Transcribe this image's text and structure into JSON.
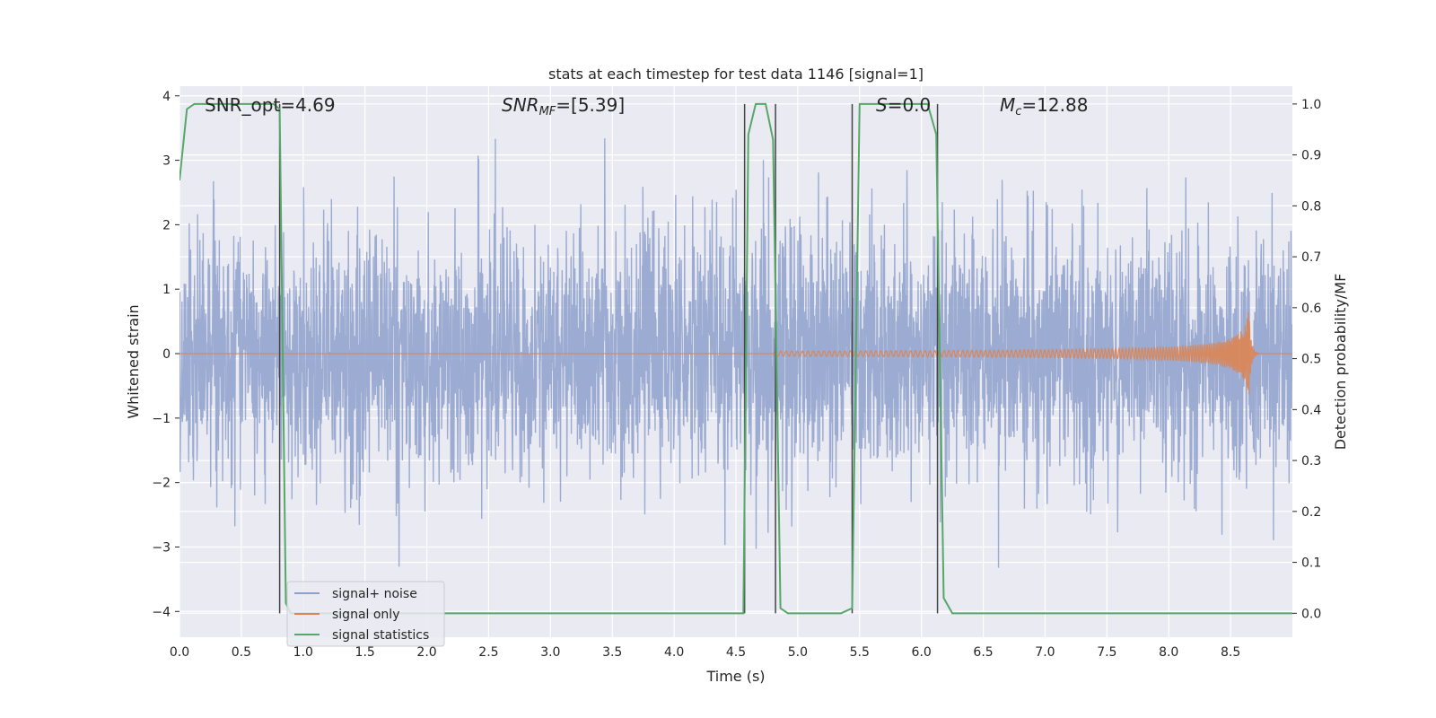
{
  "chart_data": {
    "type": "line",
    "title": "stats at each timestep for test data 1146 [signal=1]",
    "xlabel": "Time (s)",
    "ylabel": "Whitened strain",
    "y2label": "Detection probability/MF",
    "xlim": [
      0.0,
      9.0
    ],
    "ylim": [
      -4.4,
      4.15
    ],
    "y2lim": [
      -0.047,
      1.035
    ],
    "x_ticks": [
      0.0,
      0.5,
      1.0,
      1.5,
      2.0,
      2.5,
      3.0,
      3.5,
      4.0,
      4.5,
      5.0,
      5.5,
      6.0,
      6.5,
      7.0,
      7.5,
      8.0,
      8.5
    ],
    "y_ticks": [
      4,
      3,
      2,
      1,
      0,
      -1,
      -2,
      -3,
      -4
    ],
    "y_tick_labels": [
      "4",
      "3",
      "2",
      "1",
      "0",
      "−1",
      "−2",
      "−3",
      "−4"
    ],
    "y2_ticks": [
      1.0,
      0.9,
      0.8,
      0.7,
      0.6,
      0.5,
      0.4,
      0.3,
      0.2,
      0.1,
      0.0
    ],
    "y2_tick_labels": [
      "1.0",
      "0.9",
      "0.8",
      "0.7",
      "0.6",
      "0.5",
      "0.4",
      "0.3",
      "0.2",
      "0.1",
      "0.0"
    ],
    "grid": true,
    "legend_position": "lower-left",
    "annotations": {
      "snr_opt": "SNR_opt=4.69",
      "snr_mf_prefix": "SNR",
      "snr_mf_sub": "MF",
      "snr_mf_value": "=[5.39]",
      "s_sym": "S",
      "s_value": "=0.0",
      "mc_sym": "M",
      "mc_sub": "c",
      "mc_value": "=12.88"
    },
    "vertical_lines": [
      0.81,
      4.57,
      4.82,
      5.44,
      6.13
    ],
    "series": [
      {
        "name": "signal+ noise",
        "color": "#8da0cb",
        "noise_std": 0.95,
        "x_range": [
          0.0,
          9.0
        ]
      },
      {
        "name": "signal only",
        "color": "#dd8452",
        "chirp_start": 4.8,
        "merger_time": 8.65,
        "peak_amplitude": 0.7
      },
      {
        "name": "signal statistics",
        "color": "#55a868",
        "axis": "y2",
        "x": [
          0.0,
          0.06,
          0.12,
          0.7,
          0.76,
          0.81,
          0.86,
          0.9,
          4.5,
          4.56,
          4.6,
          4.66,
          4.74,
          4.8,
          4.86,
          4.92,
          5.35,
          5.44,
          5.5,
          6.05,
          6.12,
          6.18,
          6.25,
          7.0,
          9.0
        ],
        "values": [
          0.85,
          0.99,
          1.0,
          1.0,
          1.0,
          0.99,
          0.02,
          0.0,
          0.0,
          0.0,
          0.94,
          1.0,
          1.0,
          0.93,
          0.01,
          0.0,
          0.0,
          0.01,
          1.0,
          1.0,
          0.94,
          0.03,
          0.0,
          0.0,
          0.0
        ]
      }
    ]
  }
}
